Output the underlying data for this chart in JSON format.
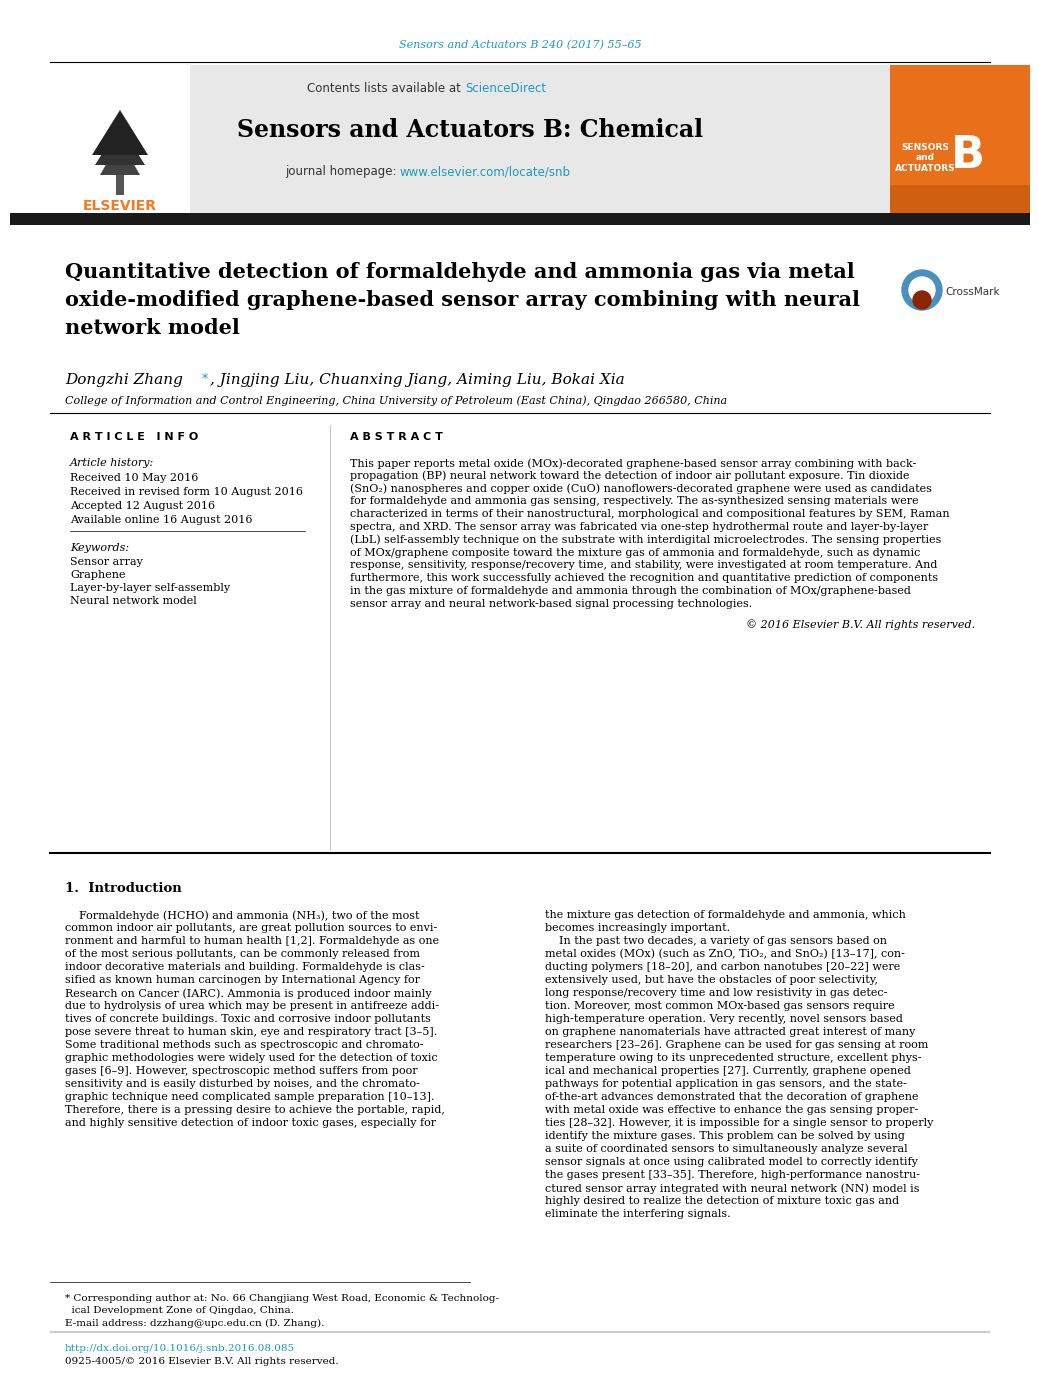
{
  "page_bg": "#ffffff",
  "top_citation": "Sensors and Actuators B 240 (2017) 55–65",
  "journal_name": "Sensors and Actuators B: Chemical",
  "contents_text": "Contents lists available at ",
  "sciencedirect_text": "ScienceDirect",
  "homepage_text": "journal homepage: ",
  "homepage_url": "www.elsevier.com/locate/snb",
  "article_title": "Quantitative detection of formaldehyde and ammonia gas via metal\noxide-modified graphene-based sensor array combining with neural\nnetwork model",
  "authors_part1": "Dongzhi Zhang",
  "authors_star": "*",
  "authors_part2": ", Jingjing Liu, Chuanxing Jiang, Aiming Liu, Bokai Xia",
  "affiliation": "College of Information and Control Engineering, China University of Petroleum (East China), Qingdao 266580, China",
  "article_info_header": "A R T I C L E   I N F O",
  "abstract_header": "A B S T R A C T",
  "article_history_label": "Article history:",
  "received": "Received 10 May 2016",
  "received_revised": "Received in revised form 10 August 2016",
  "accepted": "Accepted 12 August 2016",
  "available": "Available online 16 August 2016",
  "keywords_label": "Keywords:",
  "keywords": [
    "Sensor array",
    "Graphene",
    "Layer-by-layer self-assembly",
    "Neural network model"
  ],
  "abstract_lines": [
    "This paper reports metal oxide (MOx)-decorated graphene-based sensor array combining with back-",
    "propagation (BP) neural network toward the detection of indoor air pollutant exposure. Tin dioxide",
    "(SnO₂) nanospheres and copper oxide (CuO) nanoflowers-decorated graphene were used as candidates",
    "for formaldehyde and ammonia gas sensing, respectively. The as-synthesized sensing materials were",
    "characterized in terms of their nanostructural, morphological and compositional features by SEM, Raman",
    "spectra, and XRD. The sensor array was fabricated via one-step hydrothermal route and layer-by-layer",
    "(LbL) self-assembly technique on the substrate with interdigital microelectrodes. The sensing properties",
    "of MOx/graphene composite toward the mixture gas of ammonia and formaldehyde, such as dynamic",
    "response, sensitivity, response/recovery time, and stability, were investigated at room temperature. And",
    "furthermore, this work successfully achieved the recognition and quantitative prediction of components",
    "in the gas mixture of formaldehyde and ammonia through the combination of MOx/graphene-based",
    "sensor array and neural network-based signal processing technologies."
  ],
  "copyright": "© 2016 Elsevier B.V. All rights reserved.",
  "intro_header": "1.  Introduction",
  "intro_left_lines": [
    "    Formaldehyde (HCHO) and ammonia (NH₃), two of the most",
    "common indoor air pollutants, are great pollution sources to envi-",
    "ronment and harmful to human health [1,2]. Formaldehyde as one",
    "of the most serious pollutants, can be commonly released from",
    "indoor decorative materials and building. Formaldehyde is clas-",
    "sified as known human carcinogen by International Agency for",
    "Research on Cancer (IARC). Ammonia is produced indoor mainly",
    "due to hydrolysis of urea which may be present in antifreeze addi-",
    "tives of concrete buildings. Toxic and corrosive indoor pollutants",
    "pose severe threat to human skin, eye and respiratory tract [3–5].",
    "Some traditional methods such as spectroscopic and chromato-",
    "graphic methodologies were widely used for the detection of toxic",
    "gases [6–9]. However, spectroscopic method suffers from poor",
    "sensitivity and is easily disturbed by noises, and the chromato-",
    "graphic technique need complicated sample preparation [10–13].",
    "Therefore, there is a pressing desire to achieve the portable, rapid,",
    "and highly sensitive detection of indoor toxic gases, especially for"
  ],
  "intro_right_lines": [
    "the mixture gas detection of formaldehyde and ammonia, which",
    "becomes increasingly important.",
    "    In the past two decades, a variety of gas sensors based on",
    "metal oxides (MOx) (such as ZnO, TiO₂, and SnO₂) [13–17], con-",
    "ducting polymers [18–20], and carbon nanotubes [20–22] were",
    "extensively used, but have the obstacles of poor selectivity,",
    "long response/recovery time and low resistivity in gas detec-",
    "tion. Moreover, most common MOx-based gas sensors require",
    "high-temperature operation. Very recently, novel sensors based",
    "on graphene nanomaterials have attracted great interest of many",
    "researchers [23–26]. Graphene can be used for gas sensing at room",
    "temperature owing to its unprecedented structure, excellent phys-",
    "ical and mechanical properties [27]. Currently, graphene opened",
    "pathways for potential application in gas sensors, and the state-",
    "of-the-art advances demonstrated that the decoration of graphene",
    "with metal oxide was effective to enhance the gas sensing proper-",
    "ties [28–32]. However, it is impossible for a single sensor to properly",
    "identify the mixture gases. This problem can be solved by using",
    "a suite of coordinated sensors to simultaneously analyze several",
    "sensor signals at once using calibrated model to correctly identify",
    "the gases present [33–35]. Therefore, high-performance nanostru-",
    "ctured sensor array integrated with neural network (NN) model is",
    "highly desired to realize the detection of mixture toxic gas and",
    "eliminate the interfering signals."
  ],
  "footnote_star": "* Corresponding author at: No. 66 Changjiang West Road, Economic & Technolog-",
  "footnote_star2": "  ical Development Zone of Qingdao, China.",
  "footnote_email": "E-mail address: dzzhang@upc.edu.cn (D. Zhang).",
  "footnote_doi": "http://dx.doi.org/10.1016/j.snb.2016.08.085",
  "footnote_issn": "0925-4005/© 2016 Elsevier B.V. All rights reserved.",
  "header_gray_bg": "#e8e8e8",
  "header_dark_bar": "#1a1a1a",
  "citation_color": "#1a9abf",
  "sciencedirect_color": "#1a9abf",
  "url_color": "#1a9abf",
  "elsevier_orange": "#f47920",
  "title_color": "#000000"
}
